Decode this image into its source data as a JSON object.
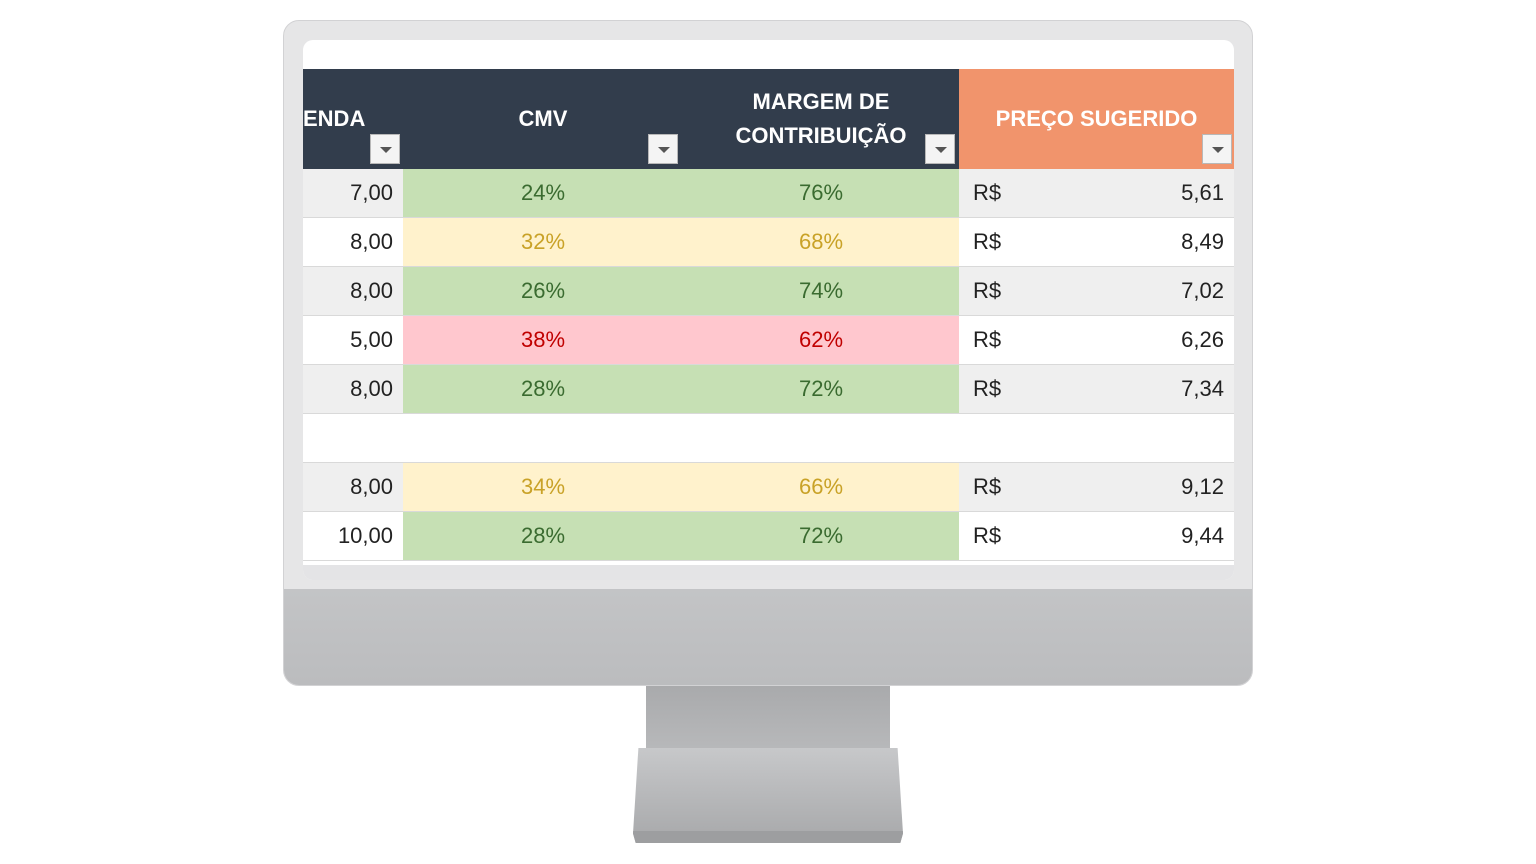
{
  "header": {
    "col_venda": "ENDA",
    "col_cmv": "CMV",
    "col_margem_line1": "MARGEM DE",
    "col_margem_line2": "CONTRIBUIÇÃO",
    "col_preco": "PREÇO SUGERIDO"
  },
  "colors": {
    "header_dark": "#323d4c",
    "header_accent": "#f1946c",
    "good_bg": "#c6e0b4",
    "good_text": "#3a6b30",
    "warn_bg": "#fff2cc",
    "warn_text": "#c9a227",
    "bad_bg": "#ffc7ce",
    "bad_text": "#c00000",
    "stripe_bg": "#efefef"
  },
  "rows": [
    {
      "venda": "7,00",
      "cmv": "24%",
      "margem": "76%",
      "moeda": "R$",
      "preco": "5,61",
      "status": "good"
    },
    {
      "venda": "8,00",
      "cmv": "32%",
      "margem": "68%",
      "moeda": "R$",
      "preco": "8,49",
      "status": "warn"
    },
    {
      "venda": "8,00",
      "cmv": "26%",
      "margem": "74%",
      "moeda": "R$",
      "preco": "7,02",
      "status": "good"
    },
    {
      "venda": "5,00",
      "cmv": "38%",
      "margem": "62%",
      "moeda": "R$",
      "preco": "6,26",
      "status": "bad"
    },
    {
      "venda": "8,00",
      "cmv": "28%",
      "margem": "72%",
      "moeda": "R$",
      "preco": "7,34",
      "status": "good"
    },
    {
      "venda": "",
      "cmv": "",
      "margem": "",
      "moeda": "",
      "preco": "",
      "status": "empty"
    },
    {
      "venda": "8,00",
      "cmv": "34%",
      "margem": "66%",
      "moeda": "R$",
      "preco": "9,12",
      "status": "warn"
    },
    {
      "venda": "10,00",
      "cmv": "28%",
      "margem": "72%",
      "moeda": "R$",
      "preco": "9,44",
      "status": "good"
    }
  ]
}
